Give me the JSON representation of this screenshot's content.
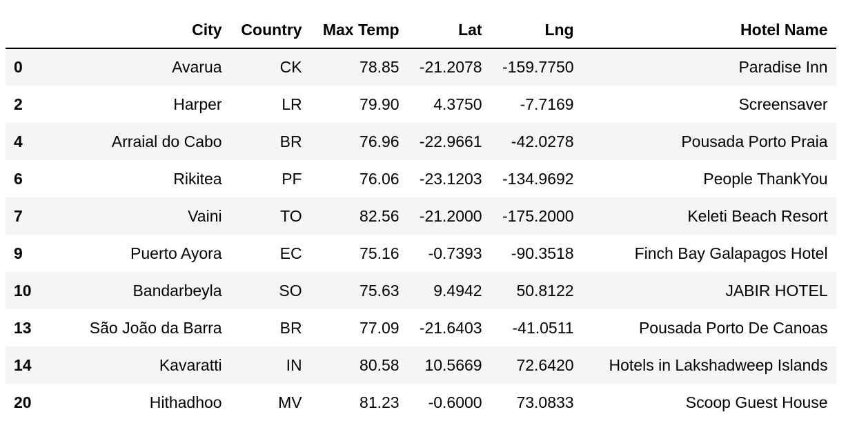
{
  "table": {
    "index_header": "",
    "columns": [
      "City",
      "Country",
      "Max Temp",
      "Lat",
      "Lng",
      "Hotel Name"
    ],
    "rows": [
      {
        "index": "0",
        "cells": [
          "Avarua",
          "CK",
          "78.85",
          "-21.2078",
          "-159.7750",
          "Paradise Inn"
        ]
      },
      {
        "index": "2",
        "cells": [
          "Harper",
          "LR",
          "79.90",
          "4.3750",
          "-7.7169",
          "Screensaver"
        ]
      },
      {
        "index": "4",
        "cells": [
          "Arraial do Cabo",
          "BR",
          "76.96",
          "-22.9661",
          "-42.0278",
          "Pousada Porto Praia"
        ]
      },
      {
        "index": "6",
        "cells": [
          "Rikitea",
          "PF",
          "76.06",
          "-23.1203",
          "-134.9692",
          "People ThankYou"
        ]
      },
      {
        "index": "7",
        "cells": [
          "Vaini",
          "TO",
          "82.56",
          "-21.2000",
          "-175.2000",
          "Keleti Beach Resort"
        ]
      },
      {
        "index": "9",
        "cells": [
          "Puerto Ayora",
          "EC",
          "75.16",
          "-0.7393",
          "-90.3518",
          "Finch Bay Galapagos Hotel"
        ]
      },
      {
        "index": "10",
        "cells": [
          "Bandarbeyla",
          "SO",
          "75.63",
          "9.4942",
          "50.8122",
          "JABIR HOTEL"
        ]
      },
      {
        "index": "13",
        "cells": [
          "São João da Barra",
          "BR",
          "77.09",
          "-21.6403",
          "-41.0511",
          "Pousada Porto De Canoas"
        ]
      },
      {
        "index": "14",
        "cells": [
          "Kavaratti",
          "IN",
          "80.58",
          "10.5669",
          "72.6420",
          "Hotels in Lakshadweep Islands"
        ]
      },
      {
        "index": "20",
        "cells": [
          "Hithadhoo",
          "MV",
          "81.23",
          "-0.6000",
          "73.0833",
          "Scoop Guest House"
        ]
      }
    ]
  },
  "colors": {
    "row_stripe": "#f5f5f5",
    "header_rule": "#000000"
  }
}
